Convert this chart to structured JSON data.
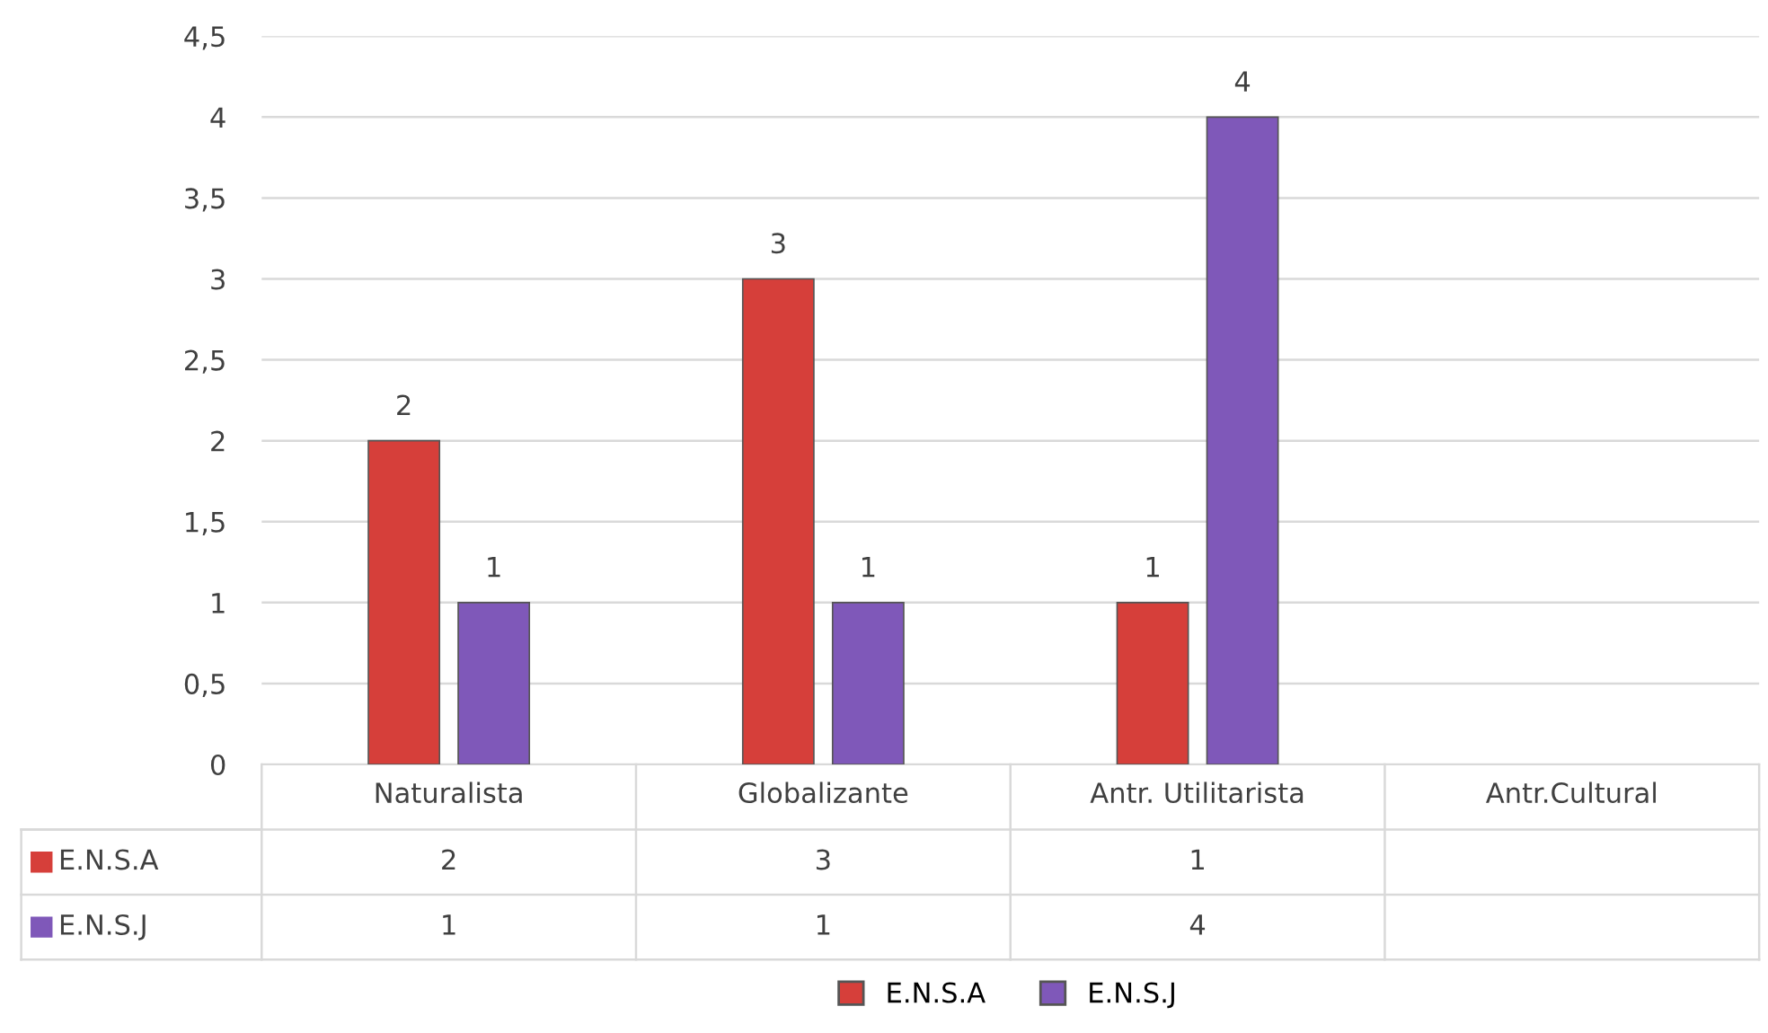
{
  "chart_data": {
    "type": "bar",
    "categories": [
      "Naturalista",
      "Globalizante",
      "Antr. Utilitarista",
      "Antr.Cultural"
    ],
    "series": [
      {
        "name": "E.N.S.A",
        "color": "#d63f3a",
        "values": [
          2,
          3,
          1,
          null
        ],
        "value_labels": [
          "2",
          "3",
          "1",
          null
        ]
      },
      {
        "name": "E.N.S.J",
        "color": "#7f58b9",
        "values": [
          1,
          1,
          4,
          null
        ],
        "value_labels": [
          "1",
          "1",
          "4",
          null
        ]
      }
    ],
    "ylim": [
      0,
      4.5
    ],
    "yticks": [
      0,
      {
        "value": 0.5,
        "label": "0,5"
      },
      1,
      {
        "value": 1.5,
        "label": "1,5"
      },
      2,
      {
        "value": 2.5,
        "label": "2,5"
      },
      3,
      {
        "value": 3.5,
        "label": "3,5"
      },
      4,
      {
        "value": 4.5,
        "label": "4,5"
      }
    ],
    "annotations": [
      "2",
      "3",
      "1",
      "1",
      "1",
      "4"
    ],
    "grid": "y",
    "legend": "bottom"
  }
}
